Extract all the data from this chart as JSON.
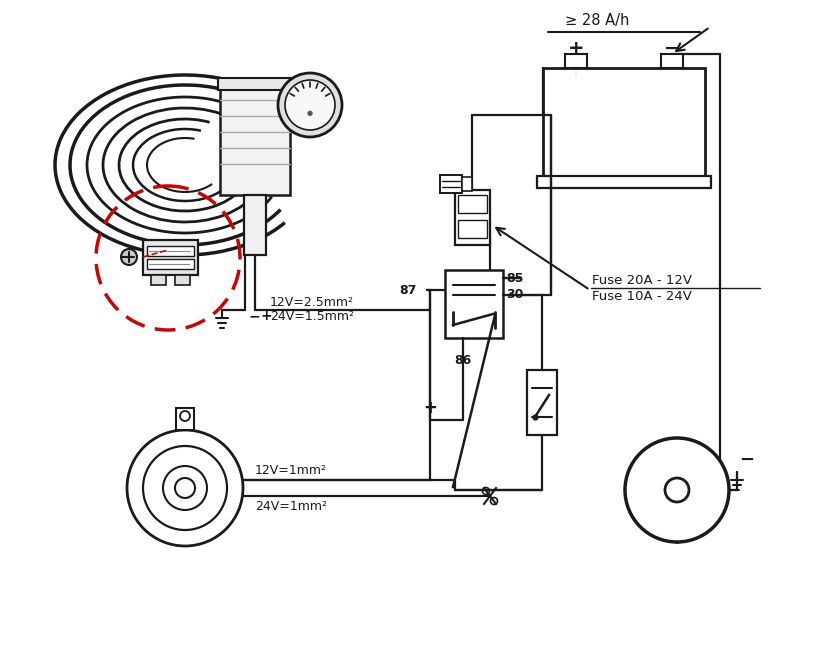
{
  "bg": "#ffffff",
  "lc": "#1a1a1a",
  "red": "#cc0000",
  "figsize": [
    8.24,
    6.54
  ],
  "dpi": 100,
  "labels": {
    "batt_cap": "≥ 28 A/h",
    "bat_plus": "+",
    "bat_minus": "−",
    "fuse1": "Fuse 20A - 12V",
    "fuse2": "Fuse 10A - 24V",
    "w1": "12V=2.5mm²",
    "w2": "24V=1.5mm²",
    "w3": "12V=1mm²",
    "w4": "24V=1mm²",
    "plus": "+",
    "minus": "−",
    "r85": "85",
    "r87": "87",
    "r30": "30",
    "r86": "86",
    "wminus": "−"
  }
}
